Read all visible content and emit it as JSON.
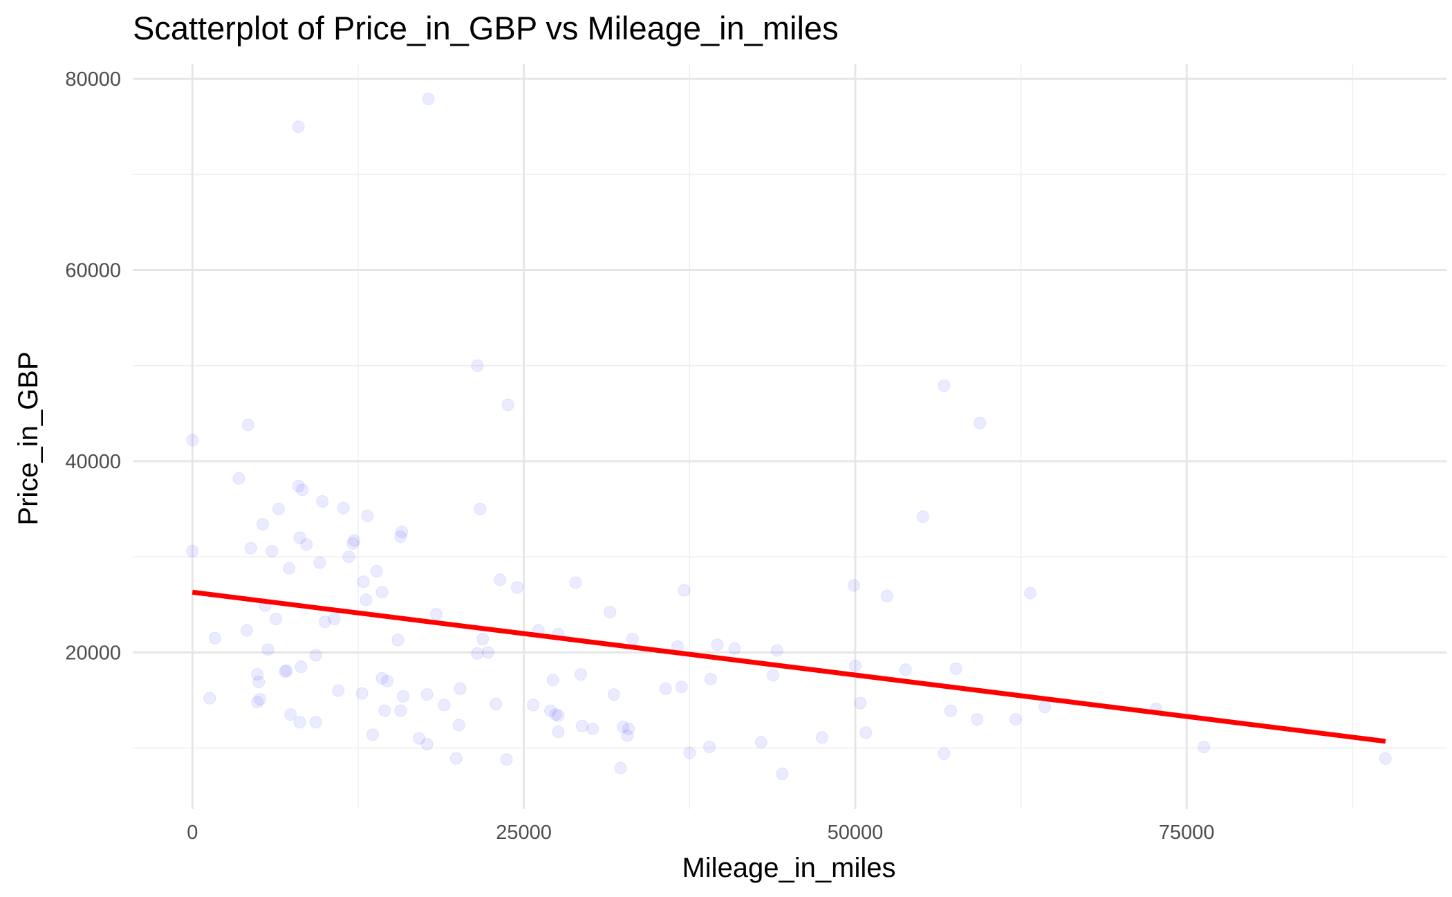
{
  "chart_data": {
    "type": "scatter",
    "title": "Scatterplot of Price_in_GBP vs Mileage_in_miles",
    "xlabel": "Mileage_in_miles",
    "ylabel": "Price_in_GBP",
    "xlim": [
      -4500,
      94600
    ],
    "ylim": [
      3600,
      81600
    ],
    "x_ticks": [
      0,
      25000,
      50000,
      75000
    ],
    "y_ticks": [
      20000,
      40000,
      60000,
      80000
    ],
    "x_tick_labels": [
      "0",
      "25000",
      "50000",
      "75000"
    ],
    "y_tick_labels": [
      "20000",
      "40000",
      "60000",
      "80000"
    ],
    "grid": true,
    "point_color": "#0000ff",
    "point_alpha": 0.08,
    "trend_color": "#ff0000",
    "trend_line": {
      "x": [
        0,
        90000
      ],
      "y": [
        26300,
        10700
      ]
    },
    "points": [
      [
        8000,
        75000
      ],
      [
        17800,
        77900
      ],
      [
        21500,
        50000
      ],
      [
        23800,
        45900
      ],
      [
        56700,
        47900
      ],
      [
        59400,
        44000
      ],
      [
        0,
        42200
      ],
      [
        4200,
        43800
      ],
      [
        3500,
        38200
      ],
      [
        8000,
        37400
      ],
      [
        8300,
        37000
      ],
      [
        9800,
        35800
      ],
      [
        6500,
        35000
      ],
      [
        11400,
        35100
      ],
      [
        13200,
        34300
      ],
      [
        21700,
        35000
      ],
      [
        55100,
        34200
      ],
      [
        5300,
        33400
      ],
      [
        15800,
        32600
      ],
      [
        15700,
        32100
      ],
      [
        8100,
        32000
      ],
      [
        8600,
        31300
      ],
      [
        12200,
        31700
      ],
      [
        12100,
        31400
      ],
      [
        4400,
        30900
      ],
      [
        6000,
        30600
      ],
      [
        0,
        30600
      ],
      [
        11800,
        30000
      ],
      [
        9600,
        29400
      ],
      [
        7300,
        28800
      ],
      [
        13900,
        28500
      ],
      [
        12900,
        27400
      ],
      [
        23200,
        27600
      ],
      [
        24500,
        26800
      ],
      [
        28900,
        27300
      ],
      [
        37100,
        26500
      ],
      [
        49900,
        27000
      ],
      [
        52400,
        25900
      ],
      [
        63200,
        26200
      ],
      [
        14300,
        26300
      ],
      [
        13100,
        25500
      ],
      [
        5500,
        24900
      ],
      [
        18400,
        24000
      ],
      [
        31500,
        24200
      ],
      [
        10700,
        23500
      ],
      [
        6300,
        23500
      ],
      [
        10000,
        23200
      ],
      [
        4100,
        22300
      ],
      [
        26100,
        22300
      ],
      [
        27600,
        21900
      ],
      [
        1700,
        21500
      ],
      [
        21900,
        21400
      ],
      [
        33200,
        21400
      ],
      [
        15500,
        21300
      ],
      [
        36600,
        20600
      ],
      [
        39600,
        20800
      ],
      [
        40900,
        20400
      ],
      [
        21500,
        19900
      ],
      [
        22300,
        20000
      ],
      [
        44100,
        20200
      ],
      [
        5700,
        20300
      ],
      [
        9300,
        19700
      ],
      [
        50000,
        18600
      ],
      [
        53800,
        18200
      ],
      [
        57600,
        18300
      ],
      [
        8200,
        18500
      ],
      [
        7100,
        18100
      ],
      [
        7000,
        18000
      ],
      [
        14700,
        17000
      ],
      [
        14300,
        17300
      ],
      [
        27200,
        17100
      ],
      [
        29300,
        17700
      ],
      [
        39100,
        17200
      ],
      [
        43800,
        17600
      ],
      [
        4900,
        17700
      ],
      [
        5000,
        16900
      ],
      [
        11000,
        16000
      ],
      [
        12800,
        15700
      ],
      [
        15900,
        15400
      ],
      [
        17700,
        15600
      ],
      [
        20200,
        16200
      ],
      [
        31800,
        15600
      ],
      [
        35700,
        16200
      ],
      [
        36900,
        16400
      ],
      [
        1300,
        15200
      ],
      [
        4900,
        14800
      ],
      [
        5100,
        15100
      ],
      [
        19000,
        14500
      ],
      [
        22900,
        14600
      ],
      [
        25700,
        14500
      ],
      [
        50400,
        14700
      ],
      [
        57200,
        13900
      ],
      [
        64300,
        14300
      ],
      [
        72700,
        14100
      ],
      [
        7400,
        13500
      ],
      [
        9300,
        12700
      ],
      [
        8100,
        12700
      ],
      [
        14500,
        13900
      ],
      [
        15700,
        13900
      ],
      [
        27000,
        13900
      ],
      [
        27400,
        13500
      ],
      [
        27600,
        13400
      ],
      [
        29400,
        12300
      ],
      [
        30200,
        12000
      ],
      [
        32500,
        12200
      ],
      [
        32900,
        12000
      ],
      [
        32800,
        11300
      ],
      [
        27600,
        11700
      ],
      [
        59200,
        13000
      ],
      [
        62100,
        13000
      ],
      [
        13600,
        11400
      ],
      [
        17100,
        11000
      ],
      [
        17700,
        10400
      ],
      [
        20100,
        12400
      ],
      [
        42900,
        10600
      ],
      [
        47500,
        11100
      ],
      [
        50800,
        11600
      ],
      [
        39000,
        10100
      ],
      [
        37500,
        9500
      ],
      [
        76300,
        10100
      ],
      [
        56700,
        9400
      ],
      [
        19900,
        8900
      ],
      [
        23700,
        8800
      ],
      [
        32300,
        7900
      ],
      [
        44500,
        7300
      ],
      [
        90000,
        8900
      ]
    ]
  }
}
